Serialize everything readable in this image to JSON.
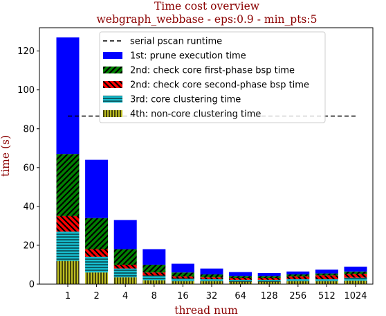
{
  "chart_data": {
    "type": "bar",
    "stacked": true,
    "title": "Time cost overview",
    "subtitle": "webgraph_webbase - eps:0.9 - min_pts:5",
    "xlabel": "thread num",
    "ylabel": "time (s)",
    "ylim": [
      0,
      132
    ],
    "yticks": [
      0,
      20,
      40,
      60,
      80,
      100,
      120
    ],
    "categories": [
      "1",
      "2",
      "4",
      "8",
      "16",
      "32",
      "64",
      "128",
      "256",
      "512",
      "1024"
    ],
    "series": [
      {
        "name": "4th: non-core clustering time",
        "color": "#bcbd22",
        "hatch": "vertical",
        "values": [
          12,
          6,
          3.5,
          2,
          1.5,
          1.5,
          1.2,
          1.2,
          1.5,
          1.5,
          1.8
        ]
      },
      {
        "name": "3rd: core clustering time",
        "color": "#17becf",
        "hatch": "horizontal",
        "values": [
          15,
          8,
          4.5,
          2.5,
          1.5,
          1,
          1,
          1,
          1,
          1,
          1.5
        ]
      },
      {
        "name": "2nd: check core second-phase bsp time",
        "color": "#ff0000",
        "hatch": "diagonal-back",
        "values": [
          8,
          4,
          2,
          1.5,
          1,
          1,
          1,
          1,
          1.5,
          2,
          2
        ]
      },
      {
        "name": "2nd: check core first-phase bsp time",
        "color": "#008000",
        "hatch": "diagonal",
        "values": [
          32,
          16,
          8,
          4,
          2,
          1.5,
          1,
          1,
          1,
          1,
          1.2
        ]
      },
      {
        "name": "1st: prune execution time",
        "color": "#0000ff",
        "hatch": "none",
        "values": [
          60,
          30,
          15,
          8,
          4.5,
          3,
          2,
          1.5,
          1.5,
          2,
          2.5
        ]
      }
    ],
    "reference_line": {
      "name": "serial pscan runtime",
      "value": 86.5,
      "style": "dashed",
      "color": "#000000"
    },
    "legend": {
      "placement": "top-center",
      "order": [
        "serial pscan runtime",
        "1st: prune execution time",
        "2nd: check core first-phase bsp time",
        "2nd: check core second-phase bsp time",
        "3rd: core clustering time",
        "4th: non-core clustering time"
      ]
    },
    "grid": false
  }
}
